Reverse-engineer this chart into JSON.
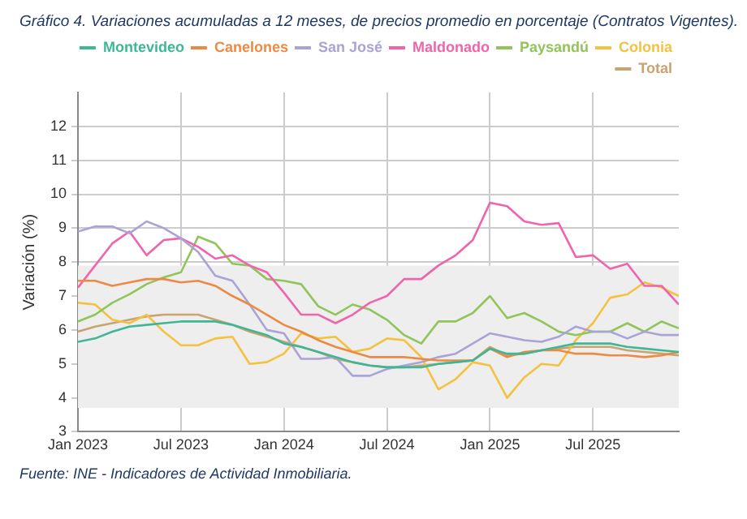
{
  "chart_data": {
    "type": "line",
    "title": "Gráfico 4. Variaciones acumuladas a 12 meses, de precios promedio en porcentaje (Contratos Vigentes).",
    "ylabel": "Variación (%)",
    "annotations": [
      "Fuente: INE - Indicadores de Actividad Inmobiliaria."
    ],
    "x": [
      "2023-01",
      "2023-02",
      "2023-03",
      "2023-04",
      "2023-05",
      "2023-06",
      "2023-07",
      "2023-08",
      "2023-09",
      "2023-10",
      "2023-11",
      "2023-12",
      "2024-01",
      "2024-02",
      "2024-03",
      "2024-04",
      "2024-05",
      "2024-06",
      "2024-07",
      "2024-08",
      "2024-09",
      "2024-10",
      "2024-11",
      "2024-12",
      "2025-01",
      "2025-02",
      "2025-03",
      "2025-04",
      "2025-05",
      "2025-06",
      "2025-07",
      "2025-08",
      "2025-09",
      "2025-10",
      "2025-11",
      "2025-12"
    ],
    "series": [
      {
        "name": "Montevideo",
        "color": "#3fb796",
        "values": [
          5.65,
          5.75,
          5.95,
          6.1,
          6.15,
          6.2,
          6.25,
          6.25,
          6.25,
          6.15,
          6.0,
          5.85,
          5.6,
          5.5,
          5.35,
          5.2,
          5.05,
          4.95,
          4.9,
          4.9,
          4.9,
          5.0,
          5.05,
          5.1,
          5.45,
          5.3,
          5.3,
          5.4,
          5.5,
          5.6,
          5.6,
          5.6,
          5.5,
          5.45,
          5.4,
          5.35
        ]
      },
      {
        "name": "Canelones",
        "color": "#ec8a45",
        "values": [
          7.45,
          7.45,
          7.3,
          7.4,
          7.5,
          7.5,
          7.4,
          7.45,
          7.3,
          7.0,
          6.75,
          6.45,
          6.15,
          5.95,
          5.7,
          5.5,
          5.35,
          5.2,
          5.2,
          5.2,
          5.15,
          5.1,
          5.1,
          5.1,
          5.45,
          5.2,
          5.35,
          5.4,
          5.4,
          5.3,
          5.3,
          5.25,
          5.25,
          5.2,
          5.25,
          5.35
        ]
      },
      {
        "name": "San José",
        "color": "#a9a3d6",
        "values": [
          8.9,
          9.05,
          9.05,
          8.85,
          9.2,
          9.0,
          8.7,
          8.3,
          7.6,
          7.45,
          6.75,
          6.0,
          5.9,
          5.15,
          5.15,
          5.2,
          4.65,
          4.65,
          4.85,
          4.95,
          5.05,
          5.2,
          5.3,
          5.6,
          5.9,
          5.8,
          5.7,
          5.65,
          5.8,
          6.1,
          5.95,
          5.95,
          5.75,
          5.95,
          5.85,
          5.85
        ]
      },
      {
        "name": "Maldonado",
        "color": "#f064ac",
        "values": [
          7.25,
          7.9,
          8.55,
          8.9,
          8.2,
          8.65,
          8.7,
          8.45,
          8.1,
          8.2,
          7.9,
          7.7,
          7.1,
          6.45,
          6.45,
          6.2,
          6.45,
          6.8,
          7.0,
          7.5,
          7.5,
          7.9,
          8.2,
          8.65,
          9.75,
          9.65,
          9.2,
          9.1,
          9.15,
          8.15,
          8.2,
          7.8,
          7.95,
          7.3,
          7.3,
          6.75
        ]
      },
      {
        "name": "Paysandú",
        "color": "#91c45a",
        "values": [
          6.25,
          6.45,
          6.8,
          7.05,
          7.35,
          7.55,
          7.7,
          8.75,
          8.55,
          7.95,
          7.9,
          7.5,
          7.45,
          7.35,
          6.7,
          6.45,
          6.75,
          6.6,
          6.3,
          5.85,
          5.6,
          6.25,
          6.25,
          6.5,
          7.0,
          6.35,
          6.5,
          6.25,
          5.95,
          5.85,
          5.95,
          5.95,
          6.2,
          5.95,
          6.25,
          6.05
        ]
      },
      {
        "name": "Colonia",
        "color": "#f2c240",
        "values": [
          6.8,
          6.75,
          6.3,
          6.2,
          6.45,
          5.95,
          5.55,
          5.55,
          5.75,
          5.8,
          5.0,
          5.05,
          5.3,
          5.9,
          5.75,
          5.8,
          5.35,
          5.45,
          5.75,
          5.7,
          5.2,
          4.25,
          4.55,
          5.05,
          4.95,
          4.0,
          4.6,
          5.0,
          4.95,
          5.7,
          6.2,
          6.95,
          7.05,
          7.4,
          7.25,
          7.0
        ]
      },
      {
        "name": "Total",
        "color": "#c9a370",
        "values": [
          5.95,
          6.1,
          6.2,
          6.3,
          6.4,
          6.45,
          6.45,
          6.45,
          6.3,
          6.15,
          5.95,
          5.8,
          5.65,
          5.5,
          5.35,
          5.15,
          5.05,
          4.95,
          4.9,
          4.9,
          4.95,
          5.0,
          5.05,
          5.1,
          5.5,
          5.25,
          5.3,
          5.4,
          5.45,
          5.5,
          5.5,
          5.5,
          5.4,
          5.35,
          5.3,
          5.25
        ]
      }
    ],
    "xlim": [
      "2023-01",
      "2025-12"
    ],
    "xticks": [
      {
        "value": "2023-01",
        "label": "Jan 2023"
      },
      {
        "value": "2023-07",
        "label": "Jul 2023"
      },
      {
        "value": "2024-01",
        "label": "Jan 2024"
      },
      {
        "value": "2024-07",
        "label": "Jul 2024"
      },
      {
        "value": "2025-01",
        "label": "Jan 2025"
      },
      {
        "value": "2025-07",
        "label": "Jul 2025"
      }
    ],
    "ylim": [
      3,
      13
    ],
    "yticks": [
      3,
      4,
      5,
      6,
      7,
      8,
      9,
      10,
      11,
      12
    ],
    "bands": [
      {
        "axis": "y",
        "from": 3.7,
        "to": 7.9,
        "color": "#eeeeee"
      }
    ],
    "grid": true,
    "legend": "top right",
    "marker": "none",
    "line_style": "solid"
  }
}
